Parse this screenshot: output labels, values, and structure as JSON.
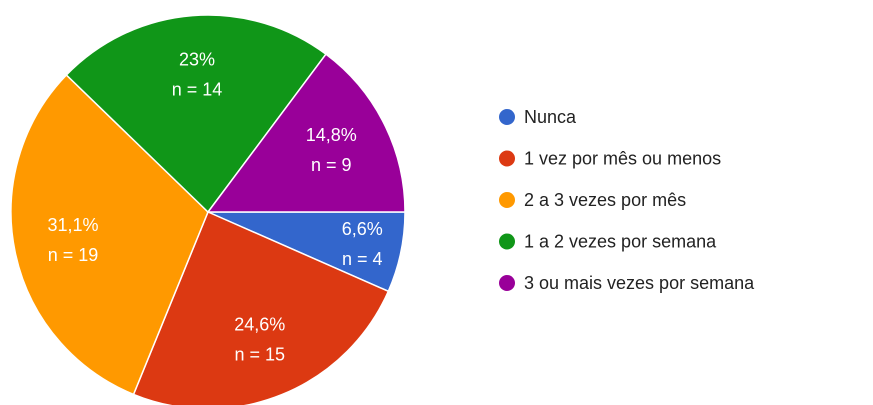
{
  "chart_data": {
    "type": "pie",
    "categories": [
      "Nunca",
      "1 vez por mês ou menos",
      "2 a 3 vezes por mês",
      "1 a 2 vezes por semana",
      "3 ou mais vezes por semana"
    ],
    "values": [
      6.6,
      24.6,
      31.1,
      23,
      14.8
    ],
    "value_labels": [
      "6,6%",
      "24,6%",
      "31,1%",
      "23%",
      "14,8%"
    ],
    "counts": [
      4,
      15,
      19,
      14,
      9
    ],
    "count_labels": [
      "n = 4",
      "n = 15",
      "n = 19",
      "n = 14",
      "n = 9"
    ],
    "colors": [
      "#3366cc",
      "#dc3912",
      "#ff9900",
      "#109618",
      "#990099"
    ],
    "legend": "right"
  }
}
